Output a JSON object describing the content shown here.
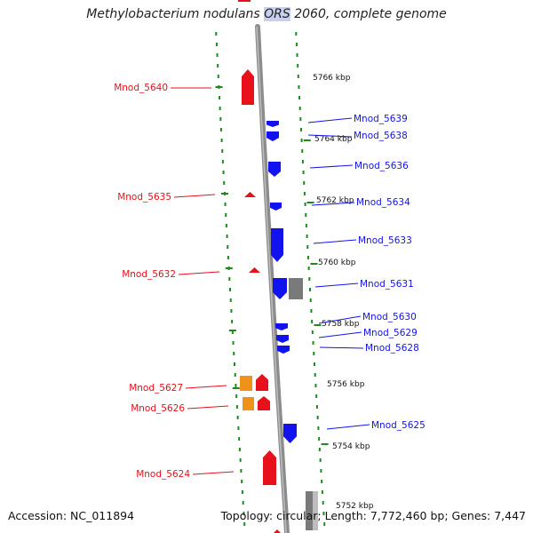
{
  "title": {
    "before": "Methylobacterium nodulans ",
    "highlight": "ORS",
    "after": " 2060, complete genome"
  },
  "footer": {
    "accession": "Accession: NC_011894",
    "topology": "Topology: circular; Length: 7,772,460 bp; Genes: 7,447"
  },
  "colors": {
    "forward": "#e8101a",
    "reverse": "#1212ee",
    "orange": "#f0921a",
    "gray": "#7a7a7a",
    "tick": "#1f8a1f",
    "backbone": "#8c8c8c"
  },
  "scale_labels": [
    "5766 kbp",
    "5764 kbp",
    "5762 kbp",
    "5760 kbp",
    "5758 kbp",
    "5756 kbp",
    "5754 kbp",
    "5752 kbp"
  ],
  "genes": [
    {
      "name": "Mnod_5640",
      "strand": "forward"
    },
    {
      "name": "Mnod_5639",
      "strand": "reverse"
    },
    {
      "name": "Mnod_5638",
      "strand": "reverse"
    },
    {
      "name": "Mnod_5636",
      "strand": "reverse"
    },
    {
      "name": "Mnod_5635",
      "strand": "forward"
    },
    {
      "name": "Mnod_5634",
      "strand": "reverse"
    },
    {
      "name": "Mnod_5633",
      "strand": "reverse"
    },
    {
      "name": "Mnod_5632",
      "strand": "forward"
    },
    {
      "name": "Mnod_5631",
      "strand": "reverse"
    },
    {
      "name": "Mnod_5630",
      "strand": "reverse"
    },
    {
      "name": "Mnod_5629",
      "strand": "reverse"
    },
    {
      "name": "Mnod_5628",
      "strand": "reverse"
    },
    {
      "name": "Mnod_5627",
      "strand": "forward"
    },
    {
      "name": "Mnod_5626",
      "strand": "forward"
    },
    {
      "name": "Mnod_5625",
      "strand": "reverse"
    },
    {
      "name": "Mnod_5624",
      "strand": "forward"
    }
  ]
}
